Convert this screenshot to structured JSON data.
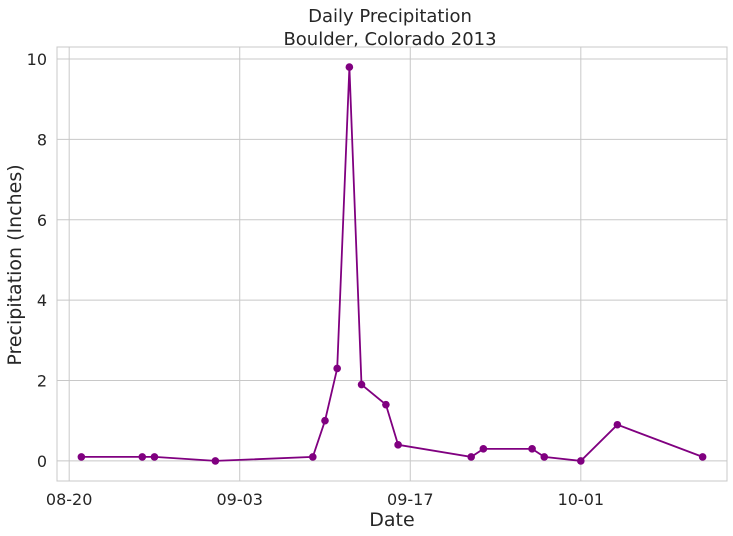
{
  "chart_data": {
    "type": "line",
    "title": "Daily Precipitation",
    "subtitle": "Boulder, Colorado 2013",
    "xlabel": "Date",
    "ylabel": "Precipitation (Inches)",
    "x_tick_labels": [
      "08-20",
      "09-03",
      "09-17",
      "10-01"
    ],
    "x_ticks": [
      "2013-08-20",
      "2013-09-03",
      "2013-09-17",
      "2013-10-01"
    ],
    "y_ticks": [
      0,
      2,
      4,
      6,
      8,
      10
    ],
    "xlim": [
      "2013-08-19",
      "2013-10-13"
    ],
    "ylim": [
      -0.5,
      10.3
    ],
    "grid": true,
    "color": "#800080",
    "marker": "circle",
    "series": [
      {
        "x": [
          "2013-08-21",
          "2013-08-26",
          "2013-08-27",
          "2013-09-01",
          "2013-09-09",
          "2013-09-10",
          "2013-09-11",
          "2013-09-12",
          "2013-09-13",
          "2013-09-15",
          "2013-09-16",
          "2013-09-22",
          "2013-09-23",
          "2013-09-27",
          "2013-09-28",
          "2013-10-01",
          "2013-10-04",
          "2013-10-11"
        ],
        "values": [
          0.1,
          0.1,
          0.1,
          0.0,
          0.1,
          1.0,
          2.3,
          9.8,
          1.9,
          1.4,
          0.4,
          0.1,
          0.3,
          0.3,
          0.1,
          0.0,
          0.9,
          0.1
        ]
      }
    ]
  }
}
